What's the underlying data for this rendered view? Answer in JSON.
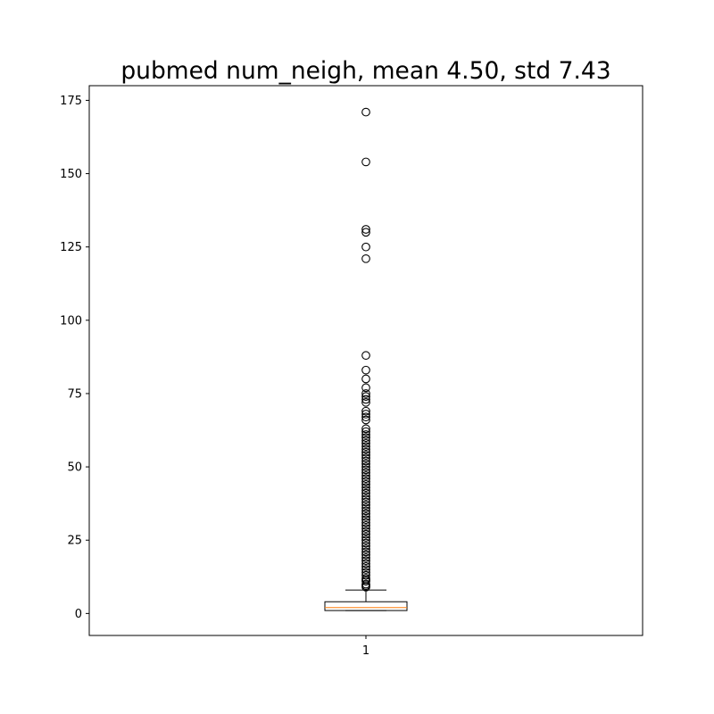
{
  "chart_data": {
    "type": "box",
    "title": "pubmed num_neigh, mean 4.50, std 7.43",
    "xlabel": "",
    "ylabel": "",
    "categories": [
      "1"
    ],
    "ylim": [
      -7.5,
      180
    ],
    "yticks": [
      0,
      25,
      50,
      75,
      100,
      125,
      150,
      175
    ],
    "grid": false,
    "box": {
      "whisker_low": 1,
      "q1": 1,
      "median": 2,
      "q3": 4,
      "whisker_high": 8
    },
    "outliers": [
      9,
      9.5,
      10,
      11,
      11.5,
      12,
      13,
      14,
      15,
      16,
      17,
      18,
      19,
      20,
      21,
      22,
      23,
      24,
      25,
      26,
      27,
      28,
      29,
      30,
      31,
      32,
      33,
      34,
      35,
      36,
      37,
      38,
      39,
      40,
      41,
      42,
      43,
      44,
      45,
      46,
      47,
      48,
      49,
      50,
      51,
      52,
      53,
      54,
      55,
      56,
      57,
      58,
      59,
      60,
      61,
      62,
      63,
      66,
      67,
      68,
      69,
      72,
      73,
      74,
      75,
      77,
      80,
      83,
      88,
      121,
      125,
      130,
      131,
      154,
      171
    ],
    "colors": {
      "median": "#ff7f0e",
      "box": "#000000"
    }
  }
}
